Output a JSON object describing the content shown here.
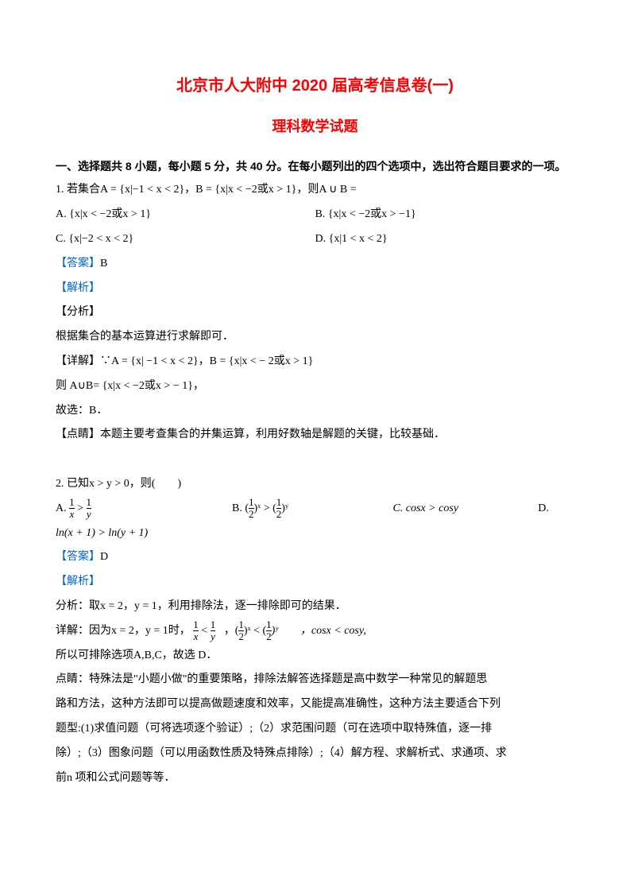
{
  "title_main": "北京市人大附中 2020 届高考信息卷(一)",
  "title_sub": "理科数学试题",
  "section1_header": "一、选择题共 8 小题，每小题 5 分，共 40 分。在每小题列出的四个选项中，选出符合题目要求的一项。",
  "q1": {
    "stem": "1. 若集合A = {x|−1 < x < 2}，B = {x|x < −2或x > 1}，则A ∪ B =",
    "optA": "A.  {x|x < −2或x > 1}",
    "optB": "B.  {x|x < −2或x > −1}",
    "optC": "C.  {x|−2 < x < 2}",
    "optD": "D.  {x|1 < x < 2}",
    "ans_label": "【答案】",
    "ans_val": "B",
    "jiexi": "【解析】",
    "fenxi": "【分析】",
    "fenxi_body": "根据集合的基本运算进行求解即可．",
    "detail_label": "【详解】",
    "detail_body1": "∵A = {x| −1 < x < 2}，B = {x|x < − 2或x > 1}",
    "detail_body2": "则 A∪B= {x|x < −2或x > − 1}，",
    "detail_body3": "故选：B．",
    "dianjing_label": "【点睛】",
    "dianjing_body": "本题主要考查集合的并集运算，利用好数轴是解题的关键，比较基础．"
  },
  "q2": {
    "stem_pre": "2. 已知x > y > 0，则(　　)",
    "optA_pre": "A.  ",
    "optB_pre": "B.  (",
    "optB_mid": ")ˣ > (",
    "optB_post": ")ʸ",
    "optC": "C.  cosx > cosy",
    "optD": "D.",
    "optD_line2": "ln(x + 1) > ln(y + 1)",
    "ans_label": "【答案】",
    "ans_val": "D",
    "jiexi": "【解析】",
    "fx_pre": "分析：取x = 2，y = 1，利用排除法，逐一排除即可的结果．",
    "detail_pre": "详解：因为x = 2，y = 1时，",
    "detail_mid1": "，(",
    "detail_mid2": ")ˣ < (",
    "detail_mid3": ")ʸ　　，cosx < cosy,",
    "exclude": "所以可排除选项A,B,C，故选 D．",
    "dj1": "点睛：特殊法是\"小题小做\"的重要策略，排除法解答选择题是高中数学一种常见的解题思",
    "dj2": "路和方法，这种方法即可以提高做题速度和效率，又能提高准确性，这种方法主要适合下列",
    "dj3": "题型:(1)求值问题（可将选项逐个验证）;（2）求范围问题（可在选项中取特殊值，逐一排",
    "dj4": "除）;（3）图象问题（可以用函数性质及特殊点排除）;（4）解方程、求解析式、求通项、求",
    "dj5": "前n 项和公式问题等等．"
  }
}
